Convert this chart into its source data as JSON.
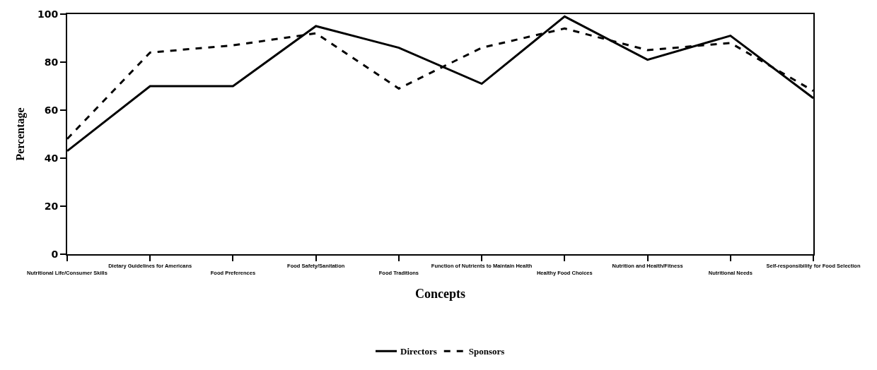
{
  "chart_data": {
    "type": "line",
    "xlabel": "Concepts",
    "ylabel": "Percentage",
    "categories": [
      "Nutritional Life/Consumer Skills",
      "Dietary Guidelines for Americans",
      "Food Preferences",
      "Food Safety/Sanitation",
      "Food Traditions",
      "Function of Nutrients to Maintain Health",
      "Healthy Food Choices",
      "Nutrition and Health/Fitness",
      "Nutritional Needs",
      "Self-responsibility for Food Selection"
    ],
    "series": [
      {
        "name": "Directors",
        "color": "#000000",
        "line_style": "solid",
        "values": [
          43,
          70,
          70,
          95,
          86,
          71,
          99,
          81,
          91,
          65
        ]
      },
      {
        "name": "Sponsors",
        "color": "#000000",
        "line_style": "dashed",
        "values": [
          48,
          84,
          87,
          92,
          69,
          86,
          94,
          85,
          88,
          68
        ]
      }
    ],
    "ylim": [
      0,
      100
    ],
    "yticks": [
      0,
      20,
      40,
      60,
      80,
      100
    ],
    "grid": false,
    "legend": "bottom",
    "marker": "none"
  }
}
